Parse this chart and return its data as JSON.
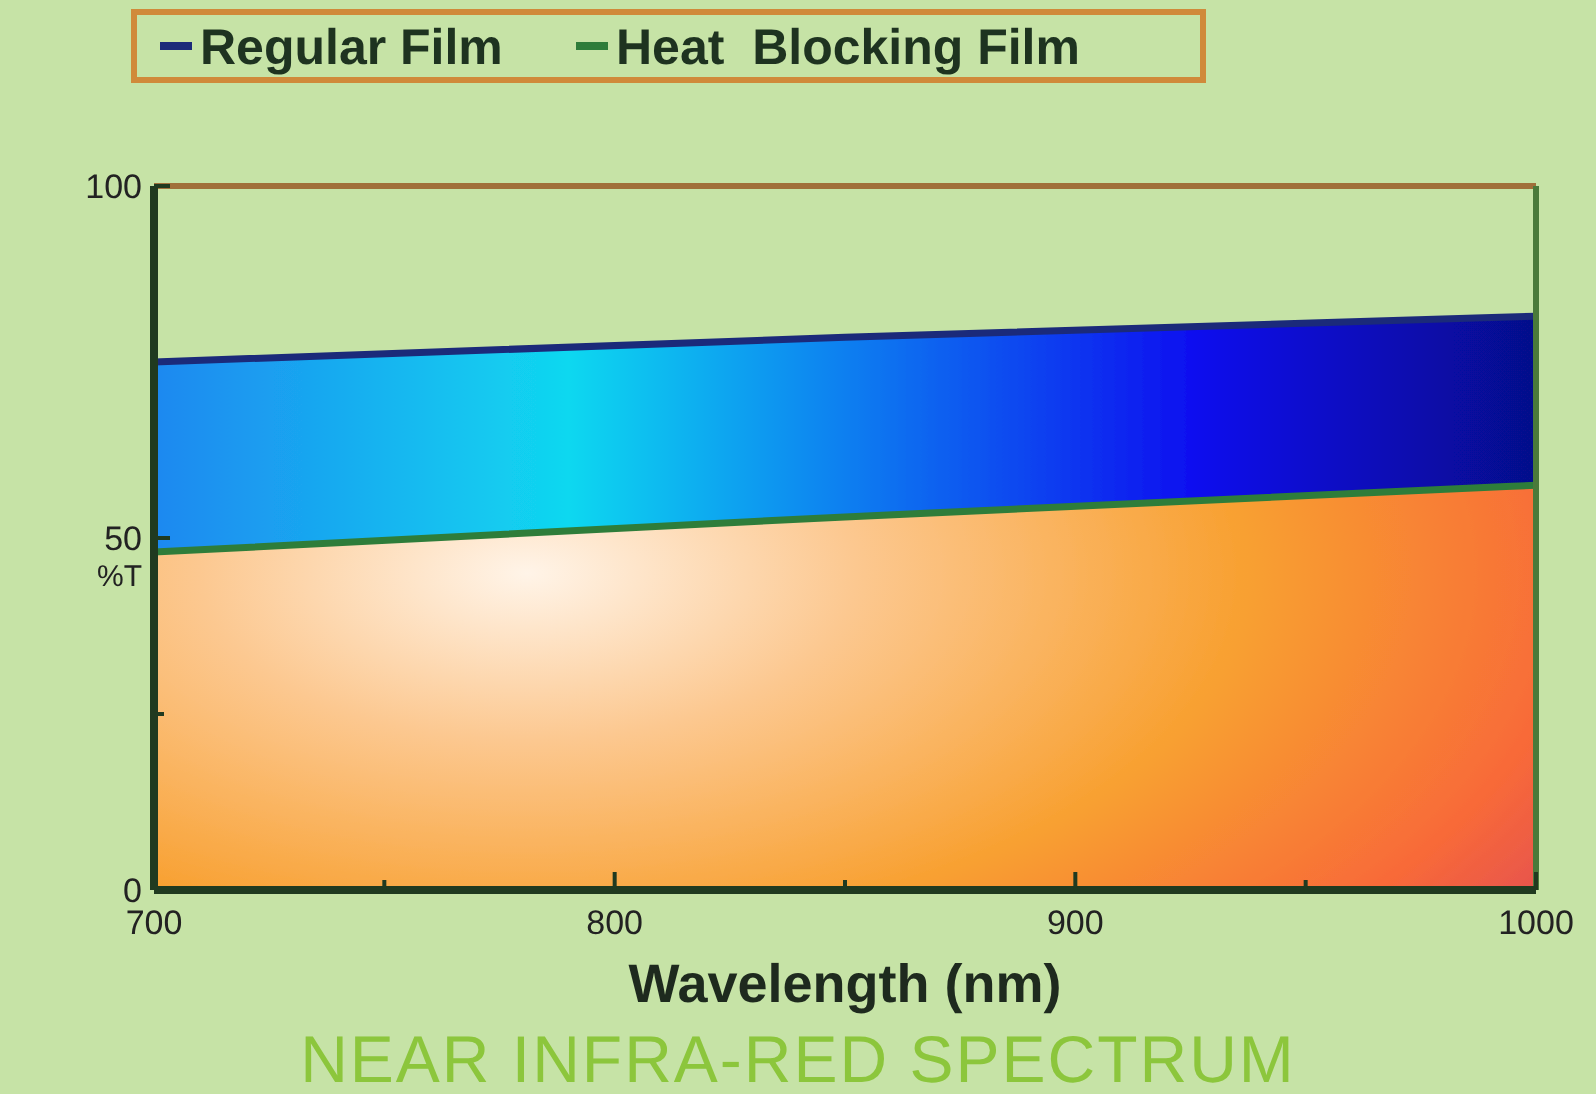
{
  "chart_data": {
    "type": "area",
    "title": "NEAR INFRA-RED SPECTRUM",
    "xlabel": "Wavelength (nm)",
    "ylabel": "%T",
    "series": [
      {
        "name": "Regular Film",
        "color": "#1b2a7a",
        "x": [
          700,
          850,
          1000
        ],
        "values": [
          75,
          78.5,
          81.5
        ]
      },
      {
        "name": "Heat  Blocking Film",
        "color": "#2e7d3a",
        "x": [
          700,
          850,
          1000
        ],
        "values": [
          48,
          53,
          57.5
        ]
      }
    ],
    "xlim": [
      700,
      1000
    ],
    "xticks": [
      700,
      {
        "value": 750,
        "label": null
      },
      800,
      {
        "value": 850,
        "label": null
      },
      900,
      {
        "value": 950,
        "label": null
      },
      1000
    ],
    "ylim": [
      0,
      100
    ],
    "yticks": [
      0,
      {
        "value": 25,
        "label": null
      },
      50,
      100
    ],
    "legend": "top",
    "marker": "none",
    "line_style": "solid"
  }
}
